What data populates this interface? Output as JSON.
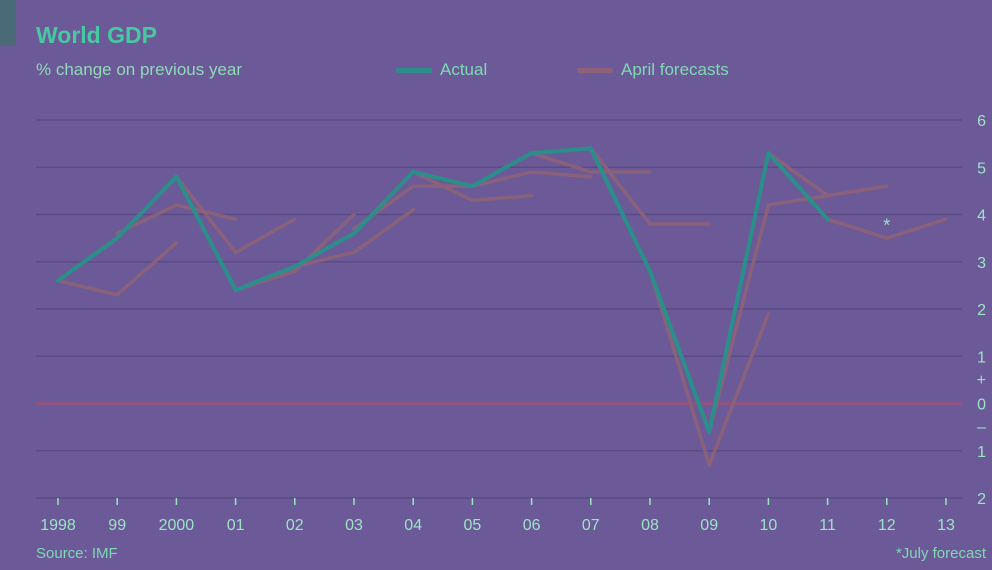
{
  "header": {
    "title": "World GDP",
    "subtitle": "% change on previous year"
  },
  "legend": {
    "actual_label": "Actual",
    "forecast_label": "April forecasts"
  },
  "footer": {
    "source": "Source: IMF",
    "footnote": "*July forecast"
  },
  "colors": {
    "actual": "#2a8f8a",
    "forecast": "#8d6278",
    "zero_line": "#b04a6a",
    "grid": "#5b4b85"
  },
  "chart_data": {
    "type": "line",
    "title": "World GDP",
    "subtitle": "% change on previous year",
    "x_ticks": [
      "1998",
      "99",
      "2000",
      "01",
      "02",
      "03",
      "04",
      "05",
      "06",
      "07",
      "08",
      "09",
      "10",
      "11",
      "12",
      "13"
    ],
    "x_years": [
      1998,
      1999,
      2000,
      2001,
      2002,
      2003,
      2004,
      2005,
      2006,
      2007,
      2008,
      2009,
      2010,
      2011,
      2012,
      2013
    ],
    "y_ticks": [
      {
        "value": 6,
        "label": "6"
      },
      {
        "value": 5,
        "label": "5"
      },
      {
        "value": 4,
        "label": "4"
      },
      {
        "value": 3,
        "label": "3"
      },
      {
        "value": 2,
        "label": "2"
      },
      {
        "value": 1,
        "label": "1"
      },
      {
        "value": 0,
        "label": "0"
      },
      {
        "value": -1,
        "label": "1"
      },
      {
        "value": -2,
        "label": "2"
      }
    ],
    "y_sign_labels": {
      "plus": "+",
      "minus": "–"
    },
    "ylim": [
      -2,
      6
    ],
    "grid": true,
    "legend_position": "top",
    "actual": {
      "name": "Actual",
      "x": [
        1998,
        1999,
        2000,
        2001,
        2002,
        2003,
        2004,
        2005,
        2006,
        2007,
        2008,
        2009,
        2010,
        2011
      ],
      "y": [
        2.6,
        3.5,
        4.8,
        2.4,
        2.9,
        3.6,
        4.9,
        4.6,
        5.3,
        5.4,
        2.8,
        -0.6,
        5.3,
        3.9
      ]
    },
    "forecasts": {
      "name": "April forecasts",
      "segments": [
        {
          "x": [
            1998,
            1999,
            2000
          ],
          "y": [
            2.6,
            2.3,
            3.4
          ]
        },
        {
          "x": [
            1999,
            2000,
            2001
          ],
          "y": [
            3.6,
            4.2,
            3.9
          ]
        },
        {
          "x": [
            2000,
            2001,
            2002
          ],
          "y": [
            4.8,
            3.2,
            3.9
          ]
        },
        {
          "x": [
            2001,
            2002,
            2003
          ],
          "y": [
            2.4,
            2.8,
            4.0
          ]
        },
        {
          "x": [
            2002,
            2003,
            2004
          ],
          "y": [
            2.9,
            3.2,
            4.1
          ]
        },
        {
          "x": [
            2003,
            2004,
            2005
          ],
          "y": [
            3.7,
            4.6,
            4.6
          ]
        },
        {
          "x": [
            2004,
            2005,
            2006
          ],
          "y": [
            4.9,
            4.3,
            4.4
          ]
        },
        {
          "x": [
            2005,
            2006,
            2007
          ],
          "y": [
            4.6,
            4.9,
            4.8
          ]
        },
        {
          "x": [
            2006,
            2007,
            2008
          ],
          "y": [
            5.3,
            4.9,
            4.9
          ]
        },
        {
          "x": [
            2007,
            2008,
            2009
          ],
          "y": [
            5.4,
            3.8,
            3.8
          ]
        },
        {
          "x": [
            2008,
            2009,
            2010
          ],
          "y": [
            2.8,
            -1.3,
            1.9
          ]
        },
        {
          "x": [
            2009,
            2010,
            2011
          ],
          "y": [
            -0.6,
            4.2,
            4.4
          ]
        },
        {
          "x": [
            2010,
            2011,
            2012
          ],
          "y": [
            5.3,
            4.4,
            4.6
          ]
        },
        {
          "x": [
            2011,
            2012,
            2013
          ],
          "y": [
            3.9,
            3.5,
            3.9
          ]
        }
      ],
      "july_marker": {
        "x": 2012,
        "y": 3.6,
        "label": "*"
      }
    }
  }
}
